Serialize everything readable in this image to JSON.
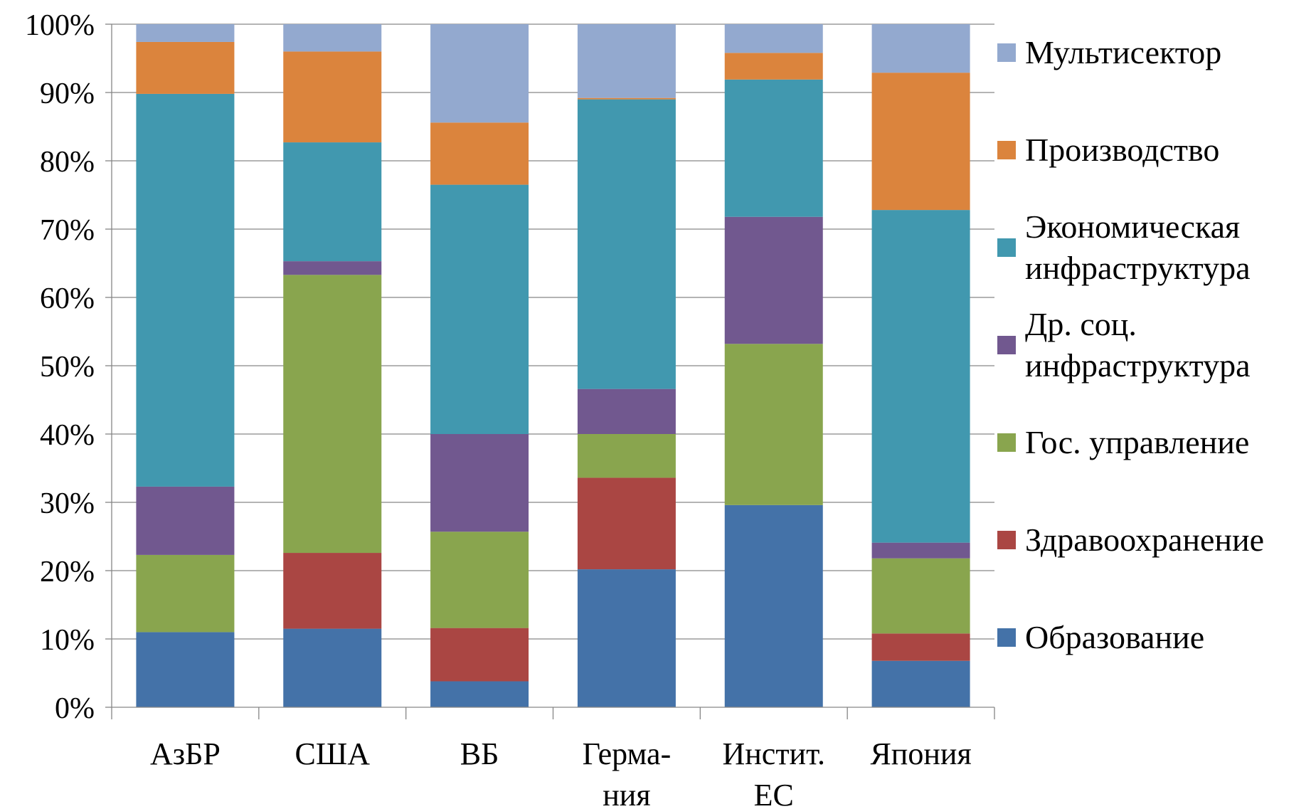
{
  "chart_data": {
    "type": "bar",
    "stacked": true,
    "percent": true,
    "categories": [
      [
        "АзБР"
      ],
      [
        "США"
      ],
      [
        "ВБ"
      ],
      [
        "Герма-",
        "ния"
      ],
      [
        "Инстит.",
        "ЕС"
      ],
      [
        "Япония"
      ]
    ],
    "series": [
      {
        "name": "Образование",
        "color": "#4472a8",
        "values": [
          11.0,
          11.5,
          3.8,
          20.2,
          29.6,
          6.8
        ]
      },
      {
        "name": "Здравоохранение",
        "color": "#aa4643",
        "values": [
          0,
          11.1,
          7.8,
          13.4,
          0,
          4.0
        ]
      },
      {
        "name": "Гос. управление",
        "color": "#89a54e",
        "values": [
          11.3,
          40.7,
          14.1,
          6.4,
          23.6,
          11.0
        ]
      },
      {
        "name": "Др. соц. инфраструктура",
        "label_lines": [
          "Др. соц.",
          "инфраструктура"
        ],
        "color": "#71588f",
        "values": [
          10.0,
          2.0,
          14.3,
          6.6,
          18.6,
          2.3
        ]
      },
      {
        "name": "Экономическая инфраструктура",
        "label_lines": [
          "Экономическая",
          "инфраструктура"
        ],
        "color": "#4198af",
        "values": [
          57.5,
          17.4,
          36.5,
          42.4,
          20.1,
          48.7
        ]
      },
      {
        "name": "Производство",
        "color": "#db843d",
        "values": [
          7.6,
          13.3,
          9.1,
          0.2,
          3.9,
          20.1
        ]
      },
      {
        "name": "Мультисектор",
        "color": "#93a9cf",
        "values": [
          2.6,
          4.0,
          14.4,
          10.8,
          4.2,
          7.1
        ]
      }
    ],
    "ylim": [
      0,
      100
    ],
    "yticks": [
      "0%",
      "10%",
      "20%",
      "30%",
      "40%",
      "50%",
      "60%",
      "70%",
      "80%",
      "90%",
      "100%"
    ],
    "grid": true,
    "legend": "right",
    "title": "",
    "xlabel": "",
    "ylabel": ""
  }
}
